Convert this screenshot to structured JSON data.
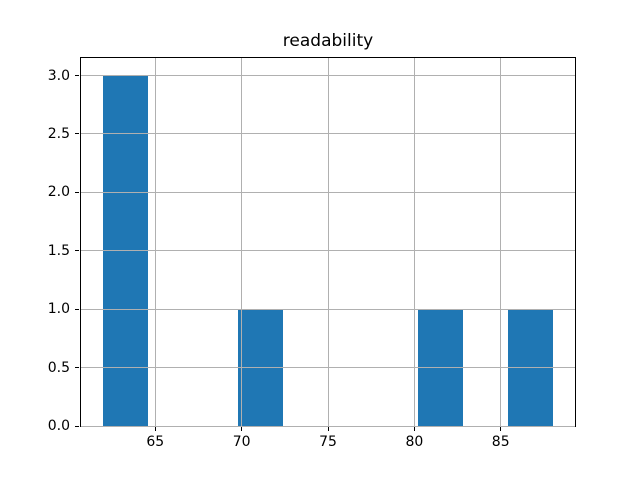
{
  "chart_data": {
    "type": "bar",
    "subtype": "histogram",
    "title": "readability",
    "xlabel": "",
    "ylabel": "",
    "bins": {
      "start": 62.0,
      "end": 88.0,
      "num_bins": 10,
      "bin_width": 2.6
    },
    "bin_counts": [
      3,
      0,
      0,
      1,
      0,
      0,
      0,
      1,
      0,
      1
    ],
    "bars": [
      {
        "x0": 62.0,
        "x1": 64.6,
        "count": 3
      },
      {
        "x0": 69.8,
        "x1": 72.4,
        "count": 1
      },
      {
        "x0": 80.2,
        "x1": 82.8,
        "count": 1
      },
      {
        "x0": 85.4,
        "x1": 88.0,
        "count": 1
      }
    ],
    "x_ticks": [
      65,
      70,
      75,
      80,
      85
    ],
    "y_ticks": [
      "0.0",
      "0.5",
      "1.0",
      "1.5",
      "2.0",
      "2.5",
      "3.0"
    ],
    "xlim": [
      60.7,
      89.3
    ],
    "ylim": [
      0,
      3.15
    ],
    "grid": true,
    "grid_above_bars": true,
    "legend": null,
    "bar_color": "#1f77b4",
    "grid_color": "#b0b0b0",
    "spine_color": "#000000",
    "background_color": "#ffffff"
  }
}
